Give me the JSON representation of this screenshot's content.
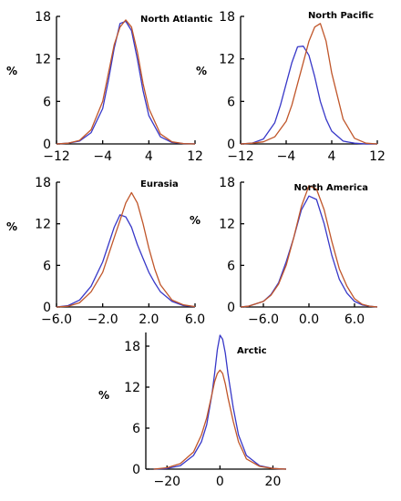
{
  "figure": {
    "colors": {
      "series_a": "#3838c8",
      "series_b": "#c0562a",
      "axis": "#000000"
    }
  },
  "chart_data": [
    {
      "type": "line",
      "title": "North Atlantic",
      "ylabel": "%",
      "xlabel": "",
      "xlim": [
        -12,
        12
      ],
      "ylim": [
        0,
        18
      ],
      "xticks": [
        -12,
        -4,
        4,
        12
      ],
      "xtick_labels": [
        "−12",
        "−4",
        "4",
        "12"
      ],
      "yticks": [
        0,
        6,
        12,
        18
      ],
      "ytick_labels": [
        "0",
        "6",
        "12",
        "18"
      ],
      "series": [
        {
          "color": "#3838c8",
          "x": [
            -12,
            -10,
            -8,
            -6,
            -4,
            -3,
            -2,
            -1,
            0,
            1,
            2,
            3,
            4,
            6,
            8,
            10,
            12
          ],
          "y": [
            0,
            0.1,
            0.4,
            1.6,
            5.0,
            9.0,
            13.5,
            17.0,
            17.3,
            16.0,
            12.0,
            7.5,
            4.0,
            1.0,
            0.2,
            0.05,
            0
          ]
        },
        {
          "color": "#c0562a",
          "x": [
            -12,
            -10,
            -8,
            -6,
            -4,
            -3,
            -2,
            -1,
            0,
            1,
            2,
            3,
            4,
            6,
            8,
            10,
            12
          ],
          "y": [
            0,
            0.1,
            0.5,
            2.0,
            6.0,
            10.0,
            14.0,
            16.5,
            17.5,
            16.5,
            13.0,
            8.5,
            5.0,
            1.4,
            0.3,
            0.05,
            0
          ]
        }
      ]
    },
    {
      "type": "line",
      "title": "North Pacific",
      "ylabel": "%",
      "xlabel": "",
      "xlim": [
        -12,
        12
      ],
      "ylim": [
        0,
        18
      ],
      "xticks": [
        -12,
        -4,
        4,
        12
      ],
      "xtick_labels": [
        "−12",
        "−4",
        "4",
        "12"
      ],
      "yticks": [
        0,
        6,
        12,
        18
      ],
      "ytick_labels": [
        "0",
        "6",
        "12",
        "18"
      ],
      "series": [
        {
          "color": "#3838c8",
          "x": [
            -12,
            -10,
            -8,
            -6,
            -5,
            -4,
            -3,
            -2,
            -1,
            0,
            1,
            2,
            3,
            4,
            6,
            8,
            10,
            12
          ],
          "y": [
            0,
            0.1,
            0.7,
            3.0,
            5.5,
            8.5,
            11.5,
            13.7,
            13.8,
            12.5,
            9.5,
            6.0,
            3.5,
            1.8,
            0.4,
            0.1,
            0,
            0
          ]
        },
        {
          "color": "#c0562a",
          "x": [
            -12,
            -10,
            -8,
            -6,
            -4,
            -3,
            -2,
            -1,
            0,
            1,
            2,
            3,
            4,
            6,
            8,
            10,
            12
          ],
          "y": [
            0,
            0.1,
            0.3,
            1.0,
            3.2,
            5.5,
            8.5,
            11.5,
            14.5,
            16.5,
            17.0,
            14.5,
            10.0,
            3.5,
            0.8,
            0.1,
            0
          ]
        }
      ]
    },
    {
      "type": "line",
      "title": "Eurasia",
      "ylabel": "%",
      "xlabel": "",
      "xlim": [
        -6,
        6
      ],
      "ylim": [
        0,
        18
      ],
      "xticks": [
        -6,
        -2,
        2,
        6
      ],
      "xtick_labels": [
        "−6.0",
        "−2.0",
        "2.0",
        "6.0"
      ],
      "yticks": [
        0,
        6,
        12,
        18
      ],
      "ytick_labels": [
        "0",
        "6",
        "12",
        "18"
      ],
      "series": [
        {
          "color": "#3838c8",
          "x": [
            -6,
            -5,
            -4,
            -3,
            -2,
            -1.5,
            -1,
            -0.5,
            0,
            0.5,
            1,
            1.5,
            2,
            2.5,
            3,
            4,
            5,
            6
          ],
          "y": [
            0,
            0.2,
            1.0,
            3.0,
            6.5,
            9.0,
            11.5,
            13.3,
            13.0,
            11.5,
            9.0,
            7.0,
            5.0,
            3.5,
            2.2,
            0.8,
            0.2,
            0.05
          ]
        },
        {
          "color": "#c0562a",
          "x": [
            -6,
            -5,
            -4,
            -3,
            -2,
            -1.5,
            -1,
            -0.5,
            0,
            0.5,
            1,
            1.5,
            2,
            2.5,
            3,
            4,
            5,
            6
          ],
          "y": [
            0,
            0.1,
            0.6,
            2.2,
            5.0,
            7.5,
            10.0,
            12.5,
            15.0,
            16.5,
            15.0,
            12.0,
            8.5,
            5.5,
            3.2,
            1.0,
            0.3,
            0.05
          ]
        }
      ]
    },
    {
      "type": "line",
      "title": "North America",
      "ylabel": "%",
      "xlabel": "",
      "xlim": [
        -9,
        9
      ],
      "ylim": [
        0,
        18
      ],
      "xticks": [
        -6,
        0,
        6
      ],
      "xtick_labels": [
        "−6.0",
        "0.0",
        "6.0"
      ],
      "yticks": [
        0,
        6,
        12,
        18
      ],
      "ytick_labels": [
        "0",
        "6",
        "12",
        "18"
      ],
      "series": [
        {
          "color": "#3838c8",
          "x": [
            -9,
            -8,
            -6,
            -5,
            -4,
            -3,
            -2,
            -1,
            0,
            1,
            2,
            3,
            4,
            5,
            6,
            7,
            8,
            9
          ],
          "y": [
            0,
            0.1,
            0.8,
            1.8,
            3.5,
            6.5,
            10.0,
            14.0,
            16.0,
            15.5,
            12.0,
            7.5,
            4.0,
            2.0,
            0.8,
            0.3,
            0.1,
            0
          ]
        },
        {
          "color": "#c0562a",
          "x": [
            -9,
            -8,
            -6,
            -5,
            -4,
            -3,
            -2,
            -1,
            0,
            1,
            2,
            3,
            4,
            5,
            6,
            7,
            8,
            9
          ],
          "y": [
            0,
            0.1,
            0.8,
            1.7,
            3.3,
            6.0,
            10.0,
            14.5,
            17.5,
            17.0,
            14.0,
            9.5,
            5.5,
            3.0,
            1.2,
            0.4,
            0.1,
            0
          ]
        }
      ]
    },
    {
      "type": "line",
      "title": "Arctic",
      "ylabel": "%",
      "xlabel": "",
      "xlim": [
        -28,
        25
      ],
      "ylim": [
        0,
        20
      ],
      "xticks": [
        -20,
        0,
        20
      ],
      "xtick_labels": [
        "−20",
        "0",
        "20"
      ],
      "yticks": [
        0,
        6,
        12,
        18
      ],
      "ytick_labels": [
        "0",
        "6",
        "12",
        "18"
      ],
      "series": [
        {
          "color": "#3838c8",
          "x": [
            -25,
            -20,
            -15,
            -10,
            -7,
            -5,
            -3,
            -2,
            -1,
            0,
            1,
            2,
            3,
            5,
            7,
            10,
            15,
            20,
            25
          ],
          "y": [
            0,
            0.1,
            0.5,
            2.0,
            4.0,
            6.5,
            11.0,
            14.0,
            17.5,
            19.6,
            19.0,
            17.0,
            14.0,
            9.0,
            5.0,
            2.0,
            0.5,
            0.1,
            0
          ]
        },
        {
          "color": "#c0562a",
          "x": [
            -25,
            -20,
            -15,
            -10,
            -7,
            -5,
            -3,
            -2,
            -1,
            0,
            1,
            2,
            3,
            5,
            7,
            10,
            15,
            20,
            25
          ],
          "y": [
            0,
            0.2,
            0.8,
            2.5,
            5.0,
            7.5,
            11.0,
            12.8,
            14.0,
            14.5,
            14.0,
            12.5,
            10.5,
            7.0,
            4.0,
            1.5,
            0.4,
            0.1,
            0
          ]
        }
      ]
    }
  ]
}
